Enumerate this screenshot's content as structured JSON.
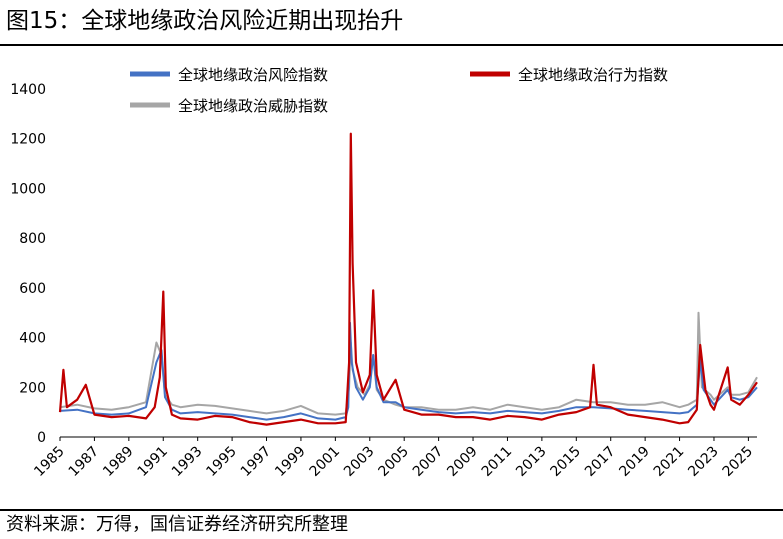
{
  "title": "图15：全球地缘政治风险近期出现抬升",
  "source": "资料来源：万得，国信证券经济研究所整理",
  "chart_data": {
    "type": "line",
    "ylim": [
      0,
      1400
    ],
    "yticks": [
      0,
      200,
      400,
      600,
      800,
      1000,
      1200,
      1400
    ],
    "xlim": [
      1985,
      2025.5
    ],
    "xticks": [
      1985,
      1987,
      1989,
      1991,
      1993,
      1995,
      1997,
      1999,
      2001,
      2003,
      2005,
      2007,
      2009,
      2011,
      2013,
      2015,
      2017,
      2019,
      2021,
      2023,
      2025
    ],
    "legend_position": "top",
    "series": [
      {
        "name": "全球地缘政治风险指数",
        "color": "#4472C4",
        "points": [
          [
            1985,
            105
          ],
          [
            1986,
            110
          ],
          [
            1987,
            95
          ],
          [
            1988,
            90
          ],
          [
            1989,
            95
          ],
          [
            1990,
            120
          ],
          [
            1990.6,
            300
          ],
          [
            1990.9,
            350
          ],
          [
            1991.1,
            160
          ],
          [
            1991.5,
            110
          ],
          [
            1992,
            95
          ],
          [
            1993,
            100
          ],
          [
            1994,
            95
          ],
          [
            1995,
            90
          ],
          [
            1996,
            80
          ],
          [
            1997,
            70
          ],
          [
            1998,
            80
          ],
          [
            1999,
            95
          ],
          [
            2000,
            75
          ],
          [
            2001,
            70
          ],
          [
            2001.6,
            80
          ],
          [
            2001.75,
            120
          ],
          [
            2001.85,
            460
          ],
          [
            2001.95,
            300
          ],
          [
            2002.2,
            200
          ],
          [
            2002.6,
            150
          ],
          [
            2003.0,
            200
          ],
          [
            2003.2,
            330
          ],
          [
            2003.4,
            200
          ],
          [
            2003.8,
            140
          ],
          [
            2004.5,
            140
          ],
          [
            2005,
            120
          ],
          [
            2006,
            110
          ],
          [
            2007,
            100
          ],
          [
            2008,
            95
          ],
          [
            2009,
            100
          ],
          [
            2010,
            95
          ],
          [
            2011,
            105
          ],
          [
            2012,
            100
          ],
          [
            2013,
            95
          ],
          [
            2014,
            105
          ],
          [
            2015,
            120
          ],
          [
            2016,
            120
          ],
          [
            2017,
            115
          ],
          [
            2018,
            110
          ],
          [
            2019,
            105
          ],
          [
            2020,
            100
          ],
          [
            2021,
            95
          ],
          [
            2021.5,
            100
          ],
          [
            2022.0,
            130
          ],
          [
            2022.2,
            310
          ],
          [
            2022.4,
            190
          ],
          [
            2022.8,
            150
          ],
          [
            2023,
            130
          ],
          [
            2023.8,
            190
          ],
          [
            2024,
            160
          ],
          [
            2024.5,
            150
          ],
          [
            2025,
            160
          ],
          [
            2025.5,
            200
          ]
        ]
      },
      {
        "name": "全球地缘政治行为指数",
        "color": "#C00000",
        "points": [
          [
            1985,
            100
          ],
          [
            1985.2,
            270
          ],
          [
            1985.4,
            120
          ],
          [
            1986,
            150
          ],
          [
            1986.5,
            210
          ],
          [
            1987,
            90
          ],
          [
            1988,
            80
          ],
          [
            1989,
            85
          ],
          [
            1990,
            75
          ],
          [
            1990.5,
            120
          ],
          [
            1990.8,
            240
          ],
          [
            1991.0,
            585
          ],
          [
            1991.15,
            200
          ],
          [
            1991.5,
            90
          ],
          [
            1992,
            75
          ],
          [
            1993,
            70
          ],
          [
            1994,
            85
          ],
          [
            1995,
            80
          ],
          [
            1996,
            60
          ],
          [
            1997,
            50
          ],
          [
            1998,
            60
          ],
          [
            1999,
            70
          ],
          [
            2000,
            55
          ],
          [
            2001,
            55
          ],
          [
            2001.6,
            60
          ],
          [
            2001.8,
            300
          ],
          [
            2001.9,
            1220
          ],
          [
            2002.0,
            700
          ],
          [
            2002.2,
            300
          ],
          [
            2002.6,
            180
          ],
          [
            2003.0,
            250
          ],
          [
            2003.2,
            590
          ],
          [
            2003.4,
            250
          ],
          [
            2003.8,
            150
          ],
          [
            2004.5,
            230
          ],
          [
            2005,
            110
          ],
          [
            2006,
            90
          ],
          [
            2007,
            90
          ],
          [
            2008,
            80
          ],
          [
            2009,
            80
          ],
          [
            2010,
            70
          ],
          [
            2011,
            85
          ],
          [
            2012,
            80
          ],
          [
            2013,
            70
          ],
          [
            2014,
            90
          ],
          [
            2015,
            100
          ],
          [
            2015.8,
            120
          ],
          [
            2016.0,
            290
          ],
          [
            2016.2,
            130
          ],
          [
            2017,
            120
          ],
          [
            2018,
            90
          ],
          [
            2019,
            80
          ],
          [
            2020,
            70
          ],
          [
            2021,
            55
          ],
          [
            2021.5,
            60
          ],
          [
            2022.0,
            110
          ],
          [
            2022.2,
            370
          ],
          [
            2022.5,
            190
          ],
          [
            2022.8,
            130
          ],
          [
            2023,
            110
          ],
          [
            2023.8,
            280
          ],
          [
            2024,
            150
          ],
          [
            2024.5,
            130
          ],
          [
            2025,
            170
          ],
          [
            2025.5,
            220
          ]
        ]
      },
      {
        "name": "全球地缘政治威胁指数",
        "color": "#A6A6A6",
        "points": [
          [
            1985,
            120
          ],
          [
            1986,
            130
          ],
          [
            1987,
            115
          ],
          [
            1988,
            110
          ],
          [
            1989,
            120
          ],
          [
            1990,
            140
          ],
          [
            1990.6,
            380
          ],
          [
            1990.9,
            330
          ],
          [
            1991.1,
            170
          ],
          [
            1991.5,
            130
          ],
          [
            1992,
            120
          ],
          [
            1993,
            130
          ],
          [
            1994,
            125
          ],
          [
            1995,
            115
          ],
          [
            1996,
            105
          ],
          [
            1997,
            95
          ],
          [
            1998,
            105
          ],
          [
            1999,
            125
          ],
          [
            2000,
            95
          ],
          [
            2001,
            90
          ],
          [
            2001.6,
            95
          ],
          [
            2001.8,
            200
          ],
          [
            2001.9,
            380
          ],
          [
            2002.0,
            270
          ],
          [
            2002.3,
            200
          ],
          [
            2002.7,
            170
          ],
          [
            2003.0,
            210
          ],
          [
            2003.2,
            330
          ],
          [
            2003.4,
            190
          ],
          [
            2003.8,
            150
          ],
          [
            2004.5,
            130
          ],
          [
            2005,
            120
          ],
          [
            2006,
            120
          ],
          [
            2007,
            110
          ],
          [
            2008,
            110
          ],
          [
            2009,
            120
          ],
          [
            2010,
            110
          ],
          [
            2011,
            130
          ],
          [
            2012,
            120
          ],
          [
            2013,
            110
          ],
          [
            2014,
            120
          ],
          [
            2015,
            150
          ],
          [
            2016,
            140
          ],
          [
            2017,
            140
          ],
          [
            2018,
            130
          ],
          [
            2019,
            130
          ],
          [
            2020,
            140
          ],
          [
            2021,
            120
          ],
          [
            2021.5,
            130
          ],
          [
            2022.0,
            150
          ],
          [
            2022.1,
            500
          ],
          [
            2022.3,
            200
          ],
          [
            2022.8,
            170
          ],
          [
            2023,
            150
          ],
          [
            2023.8,
            200
          ],
          [
            2024,
            170
          ],
          [
            2024.5,
            170
          ],
          [
            2025,
            180
          ],
          [
            2025.5,
            240
          ]
        ]
      }
    ]
  }
}
